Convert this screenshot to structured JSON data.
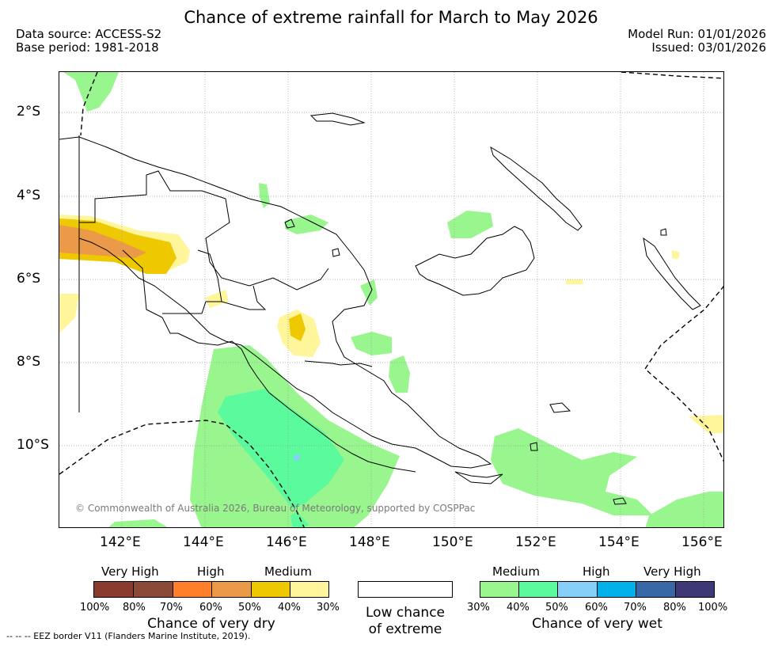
{
  "title": "Chance of extreme rainfall for March to May 2026",
  "meta": {
    "data_source": "Data source: ACCESS-S2",
    "base_period": "Base period: 1981-2018",
    "model_run": "Model Run: 01/01/2026",
    "issued": "Issued: 03/01/2026"
  },
  "axes": {
    "lat_labels": [
      "2°S",
      "4°S",
      "6°S",
      "8°S",
      "10°S"
    ],
    "lon_labels": [
      "142°E",
      "144°E",
      "146°E",
      "148°E",
      "150°E",
      "152°E",
      "154°E",
      "156°E"
    ]
  },
  "copyright": "© Commonwealth of Australia 2026, Bureau of Meteorology, supported by COSPPac",
  "legend": {
    "dry": {
      "captions": [
        "Very High",
        "High",
        "Medium"
      ],
      "percents": [
        "100%",
        "80%",
        "70%",
        "60%",
        "50%",
        "40%",
        "30%"
      ],
      "colors": [
        "#8b3a2e",
        "#8b4a38",
        "#ff7f2a",
        "#ea9a48",
        "#eec800",
        "#fff59a"
      ],
      "title": "Chance of very dry"
    },
    "low": {
      "title_line1": "Low chance",
      "title_line2": "of extreme"
    },
    "wet": {
      "captions": [
        "Medium",
        "High",
        "Very High"
      ],
      "percents": [
        "30%",
        "40%",
        "50%",
        "60%",
        "70%",
        "80%",
        "100%"
      ],
      "colors": [
        "#99f58e",
        "#5afa9d",
        "#85cff9",
        "#00b1ea",
        "#3867a6",
        "#3e3877"
      ],
      "title": "Chance of very wet"
    }
  },
  "eez_note": "-- -- -- EEZ border V11 (Flanders Marine Institute, 2019).",
  "colors": {
    "light_green": "#99f58e",
    "medium_green": "#5afa9d",
    "light_yellow": "#fff59a",
    "gold": "#eec800",
    "orange": "#ea9a48",
    "blue_dot": "#85cff9"
  }
}
